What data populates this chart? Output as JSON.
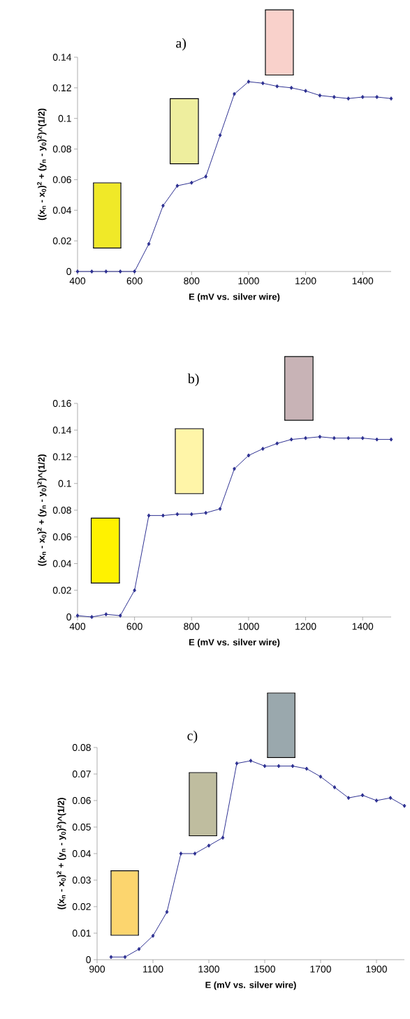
{
  "chart_data": [
    {
      "type": "line",
      "annotations": [
        "a)"
      ],
      "xlabel": "E (mV vs. silver wire)",
      "ylabel": "((x$_{n}$ - x$_{0}$)$^{2}$ + (y$_{n}$ - y$_{0}$)$^{2}$)^(1/2)",
      "color": "#2e3192",
      "marker": "diamond",
      "xlim": [
        400,
        1500
      ],
      "ylim": [
        0,
        0.14
      ],
      "xticks": [
        400,
        600,
        800,
        1000,
        1200,
        1400
      ],
      "yticks": [
        0,
        0.02,
        0.04,
        0.06,
        0.08,
        0.1,
        0.12,
        0.14
      ],
      "x": [
        400,
        450,
        500,
        550,
        600,
        650,
        700,
        750,
        800,
        850,
        900,
        950,
        1000,
        1050,
        1100,
        1150,
        1200,
        1250,
        1300,
        1350,
        1400,
        1450,
        1500
      ],
      "values": [
        0,
        0,
        0,
        0,
        0,
        0.018,
        0.043,
        0.056,
        0.058,
        0.062,
        0.089,
        0.116,
        0.124,
        0.123,
        0.121,
        0.12,
        0.118,
        0.115,
        0.114,
        0.113,
        0.114,
        0.114,
        0.113
      ]
    },
    {
      "type": "line",
      "annotations": [
        "b)"
      ],
      "xlabel": "E (mV vs. silver wire)",
      "ylabel": "((x$_{n}$ - x$_{0}$)$^{2}$ + (y$_{n}$ - y$_{0}$)$^{2}$)^(1/2)",
      "color": "#2e3192",
      "marker": "diamond",
      "xlim": [
        400,
        1500
      ],
      "ylim": [
        0,
        0.16
      ],
      "xticks": [
        400,
        600,
        800,
        1000,
        1200,
        1400
      ],
      "yticks": [
        0,
        0.02,
        0.04,
        0.06,
        0.08,
        0.1,
        0.12,
        0.14,
        0.16
      ],
      "x": [
        400,
        450,
        500,
        550,
        600,
        650,
        700,
        750,
        800,
        850,
        900,
        950,
        1000,
        1050,
        1100,
        1150,
        1200,
        1250,
        1300,
        1350,
        1400,
        1450,
        1500
      ],
      "values": [
        0.001,
        0,
        0.002,
        0.001,
        0.02,
        0.076,
        0.076,
        0.077,
        0.077,
        0.078,
        0.081,
        0.111,
        0.121,
        0.126,
        0.13,
        0.133,
        0.134,
        0.135,
        0.134,
        0.134,
        0.134,
        0.133,
        0.133
      ]
    },
    {
      "type": "line",
      "annotations": [
        "c)"
      ],
      "xlabel": "E (mV vs. silver wire)",
      "ylabel": "((x$_{n}$ - x$_{0}$)$^{2}$ + (y$_{n}$ - y$_{0}$)$^{2}$)^(1/2)",
      "color": "#2e3192",
      "marker": "diamond",
      "xlim": [
        900,
        2000
      ],
      "ylim": [
        0,
        0.08
      ],
      "xticks": [
        900,
        1100,
        1300,
        1500,
        1700,
        1900
      ],
      "yticks": [
        0,
        0.01,
        0.02,
        0.03,
        0.04,
        0.05,
        0.06,
        0.07,
        0.08
      ],
      "x": [
        950,
        1000,
        1050,
        1100,
        1150,
        1200,
        1250,
        1300,
        1350,
        1400,
        1450,
        1500,
        1550,
        1600,
        1650,
        1700,
        1750,
        1800,
        1850,
        1900,
        1950,
        2000
      ],
      "values": [
        0.001,
        0.001,
        0.004,
        0.009,
        0.018,
        0.04,
        0.04,
        0.043,
        0.046,
        0.074,
        0.075,
        0.073,
        0.073,
        0.073,
        0.072,
        0.069,
        0.065,
        0.061,
        0.062,
        0.06,
        0.061,
        0.058
      ]
    }
  ]
}
